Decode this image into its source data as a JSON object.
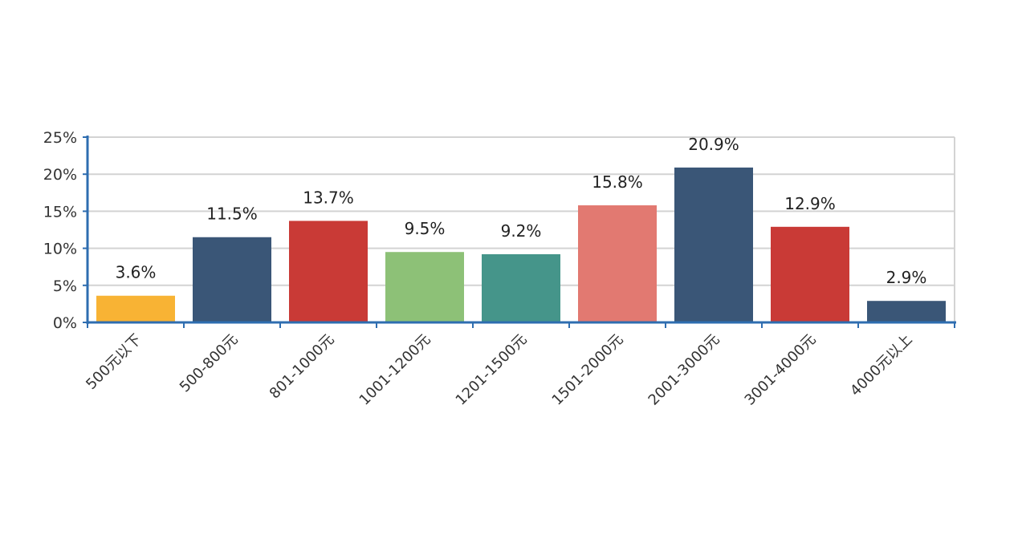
{
  "chart_data": {
    "type": "bar",
    "title": "",
    "xlabel": "",
    "ylabel": "",
    "categories": [
      "500元以下",
      "500-800元",
      "801-1000元",
      "1001-1200元",
      "1201-1500元",
      "1501-2000元",
      "2001-3000元",
      "3001-4000元",
      "4000元以上"
    ],
    "values": [
      3.6,
      11.5,
      13.7,
      9.5,
      9.2,
      15.8,
      20.9,
      12.9,
      2.9
    ],
    "value_labels": [
      "3.6%",
      "11.5%",
      "13.7%",
      "9.5%",
      "9.2%",
      "15.8%",
      "20.9%",
      "12.9%",
      "2.9%"
    ],
    "bar_colors": [
      "#F8B334",
      "#3A5677",
      "#C93A36",
      "#8DC177",
      "#45958A",
      "#E27971",
      "#3A5677",
      "#C93A36",
      "#3A5677"
    ],
    "ylim": [
      0,
      25
    ],
    "yticks": [
      0,
      5,
      10,
      15,
      20,
      25
    ],
    "ytick_labels": [
      "0%",
      "5%",
      "10%",
      "15%",
      "20%",
      "25%"
    ],
    "grid": true,
    "legend": "none",
    "axis_color": "#2E6DB0",
    "grid_color": "#D3D3D3"
  }
}
